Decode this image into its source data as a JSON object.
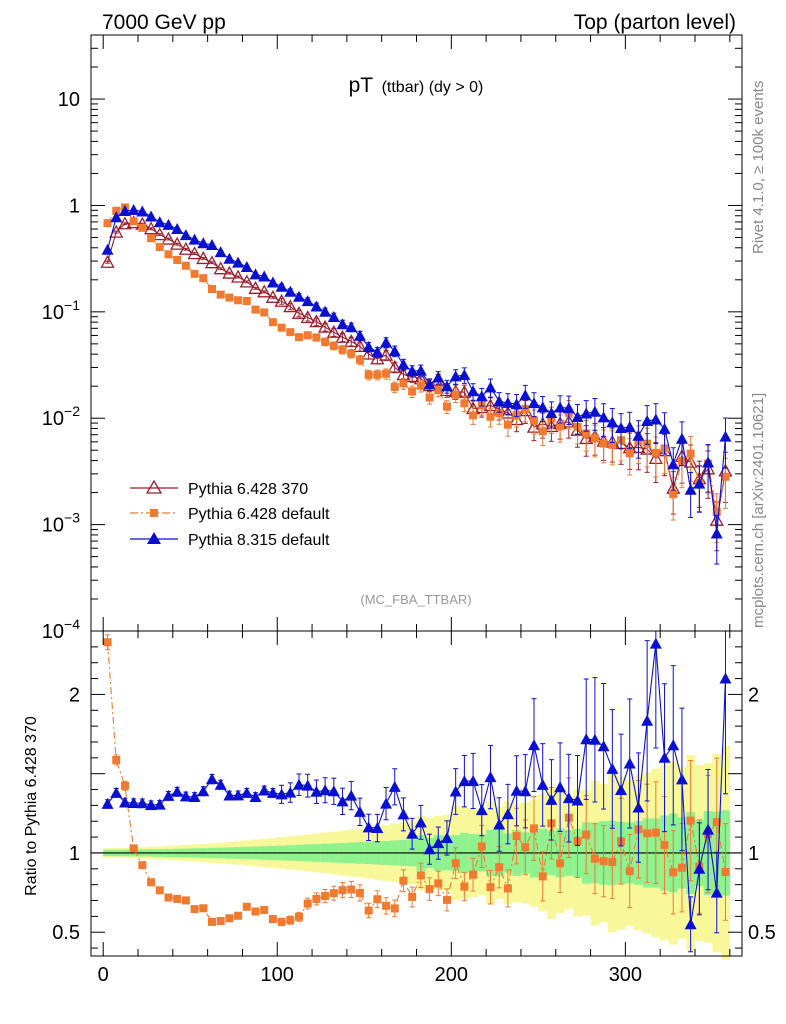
{
  "header": {
    "left": "7000 GeV pp",
    "right": "Top (parton level)"
  },
  "side_text": {
    "rivet": "Rivet 4.1.0, ≥ 100k events",
    "mcplots": "mcplots.cern.ch [arXiv:2401.10621]"
  },
  "chart_data": {
    "type": "line",
    "title": {
      "main": "pT",
      "sub": "(ttbar) (dy > 0)"
    },
    "watermark": "(MC_FBA_TTBAR)",
    "main_panel": {
      "yscale": "log",
      "ylim": [
        0.0001,
        40
      ],
      "yticks": [
        {
          "value": 10,
          "mant": "10",
          "exp": ""
        },
        {
          "value": 1,
          "mant": "1",
          "exp": ""
        },
        {
          "value": 0.1,
          "mant": "10",
          "exp": "−1"
        },
        {
          "value": 0.01,
          "mant": "10",
          "exp": "−2"
        },
        {
          "value": 0.001,
          "mant": "10",
          "exp": "−3"
        },
        {
          "value": 0.0001,
          "mant": "10",
          "exp": "−4"
        }
      ]
    },
    "ratio_panel": {
      "ylabel": "Ratio to Pythia 6.428 370",
      "ylim": [
        0.35,
        2.4
      ],
      "yticks": [
        {
          "value": 0.5,
          "label": "0.5"
        },
        {
          "value": 1,
          "label": "1"
        },
        {
          "value": 2,
          "label": "2"
        }
      ]
    },
    "xlim": [
      -7,
      367
    ],
    "xticks": [
      {
        "value": 0,
        "label": "0"
      },
      {
        "value": 100,
        "label": "100"
      },
      {
        "value": 200,
        "label": "200"
      },
      {
        "value": 300,
        "label": "300"
      }
    ],
    "series": [
      {
        "name": "Pythia 6.428 370",
        "color": "#9a1f2e",
        "marker": "open-triangle",
        "line": "solid",
        "anchors": [
          [
            2.5,
            0.3
          ],
          [
            7.5,
            0.55
          ],
          [
            12.5,
            0.68
          ],
          [
            17.5,
            0.7
          ],
          [
            25,
            0.64
          ],
          [
            40,
            0.45
          ],
          [
            60,
            0.3
          ],
          [
            80,
            0.2
          ],
          [
            100,
            0.13
          ],
          [
            125,
            0.075
          ],
          [
            150,
            0.044
          ],
          [
            175,
            0.028
          ],
          [
            200,
            0.017
          ],
          [
            225,
            0.0125
          ],
          [
            250,
            0.0095
          ],
          [
            275,
            0.0075
          ],
          [
            300,
            0.0058
          ],
          [
            325,
            0.0042
          ],
          [
            357.5,
            0.003
          ]
        ],
        "overrides": [
          [
            327.5,
            0.0022
          ],
          [
            342.5,
            0.0027
          ],
          [
            352.5,
            0.0011
          ]
        ]
      },
      {
        "name": "Pythia 6.428 default",
        "color": "#f07a30",
        "marker": "filled-square",
        "line": "dashdot",
        "anchors": [
          [
            2.5,
            1.05
          ],
          [
            7.5,
            1.3
          ],
          [
            12.5,
            0.95
          ],
          [
            17.5,
            0.74
          ],
          [
            25,
            0.54
          ],
          [
            40,
            0.31
          ],
          [
            60,
            0.18
          ],
          [
            80,
            0.12
          ],
          [
            100,
            0.085
          ],
          [
            125,
            0.055
          ],
          [
            150,
            0.036
          ],
          [
            175,
            0.025
          ],
          [
            200,
            0.0165
          ],
          [
            225,
            0.012
          ],
          [
            250,
            0.0092
          ],
          [
            275,
            0.0072
          ],
          [
            300,
            0.0056
          ],
          [
            325,
            0.0041
          ],
          [
            357.5,
            0.003
          ]
        ],
        "ratio_anchors": [
          [
            2.5,
            2.25
          ],
          [
            7.5,
            1.6
          ],
          [
            12.5,
            1.4
          ],
          [
            17.5,
            1.05
          ],
          [
            25,
            0.85
          ],
          [
            40,
            0.7
          ],
          [
            55,
            0.66
          ],
          [
            65,
            0.56
          ],
          [
            75,
            0.62
          ],
          [
            90,
            0.65
          ],
          [
            105,
            0.55
          ],
          [
            120,
            0.68
          ],
          [
            140,
            0.75
          ],
          [
            160,
            0.78
          ],
          [
            180,
            0.8
          ],
          [
            195,
            0.75
          ],
          [
            205,
            0.85
          ],
          [
            215,
            0.92
          ],
          [
            225,
            0.9
          ],
          [
            240,
            0.98
          ],
          [
            260,
            1.05
          ],
          [
            280,
            1.05
          ],
          [
            300,
            1.05
          ],
          [
            325,
            1.05
          ],
          [
            357.5,
            1.05
          ]
        ]
      },
      {
        "name": "Pythia 8.315 default",
        "color": "#0a10d0",
        "marker": "filled-triangle",
        "line": "solid",
        "anchors": [
          [
            2.5,
            0.38
          ],
          [
            7.5,
            0.72
          ],
          [
            12.5,
            0.8
          ],
          [
            17.5,
            0.82
          ],
          [
            25,
            0.78
          ],
          [
            40,
            0.6
          ],
          [
            60,
            0.43
          ],
          [
            80,
            0.29
          ],
          [
            100,
            0.19
          ],
          [
            125,
            0.11
          ],
          [
            150,
            0.058
          ],
          [
            175,
            0.036
          ],
          [
            200,
            0.022
          ],
          [
            225,
            0.015
          ],
          [
            250,
            0.0115
          ],
          [
            275,
            0.0088
          ],
          [
            300,
            0.0067
          ],
          [
            325,
            0.005
          ],
          [
            357.5,
            0.0032
          ]
        ],
        "ratio_anchors": [
          [
            2.5,
            1.28
          ],
          [
            7.5,
            1.35
          ],
          [
            12.5,
            1.28
          ],
          [
            17.5,
            1.28
          ],
          [
            25,
            1.3
          ],
          [
            40,
            1.35
          ],
          [
            55,
            1.38
          ],
          [
            65,
            1.45
          ],
          [
            75,
            1.35
          ],
          [
            90,
            1.37
          ],
          [
            105,
            1.4
          ],
          [
            120,
            1.38
          ],
          [
            135,
            1.35
          ],
          [
            145,
            1.35
          ],
          [
            155,
            1.1
          ],
          [
            165,
            1.25
          ],
          [
            175,
            1.25
          ],
          [
            185,
            1.2
          ],
          [
            195,
            0.95
          ],
          [
            205,
            1.5
          ],
          [
            215,
            1.3
          ],
          [
            225,
            1.4
          ],
          [
            235,
            1.3
          ],
          [
            245,
            1.6
          ],
          [
            255,
            1.5
          ],
          [
            265,
            1.3
          ],
          [
            275,
            1.6
          ],
          [
            285,
            1.55
          ],
          [
            295,
            1.3
          ],
          [
            305,
            1.4
          ],
          [
            315,
            1.8
          ],
          [
            325,
            1.4
          ],
          [
            335,
            1.8
          ],
          [
            345,
            1.3
          ],
          [
            357.5,
            1.3
          ]
        ],
        "ratio_overrides": [
          [
            317.5,
            2.32
          ],
          [
            357.5,
            2.1
          ],
          [
            352.5,
            0.75
          ],
          [
            342.5,
            0.9
          ],
          [
            362.5,
            0.7
          ],
          [
            337.5,
            0.55
          ]
        ]
      }
    ],
    "uncertainty_bands": {
      "inner_color": "#8ff28f",
      "outer_color": "#f8f89a",
      "inner_halfwidth": {
        "low_x": 0.02,
        "high_x": 0.22
      },
      "outer_halfwidth": {
        "low_x": 0.03,
        "high_x": 0.55
      }
    },
    "legend": {
      "position": "bottom-left"
    }
  }
}
